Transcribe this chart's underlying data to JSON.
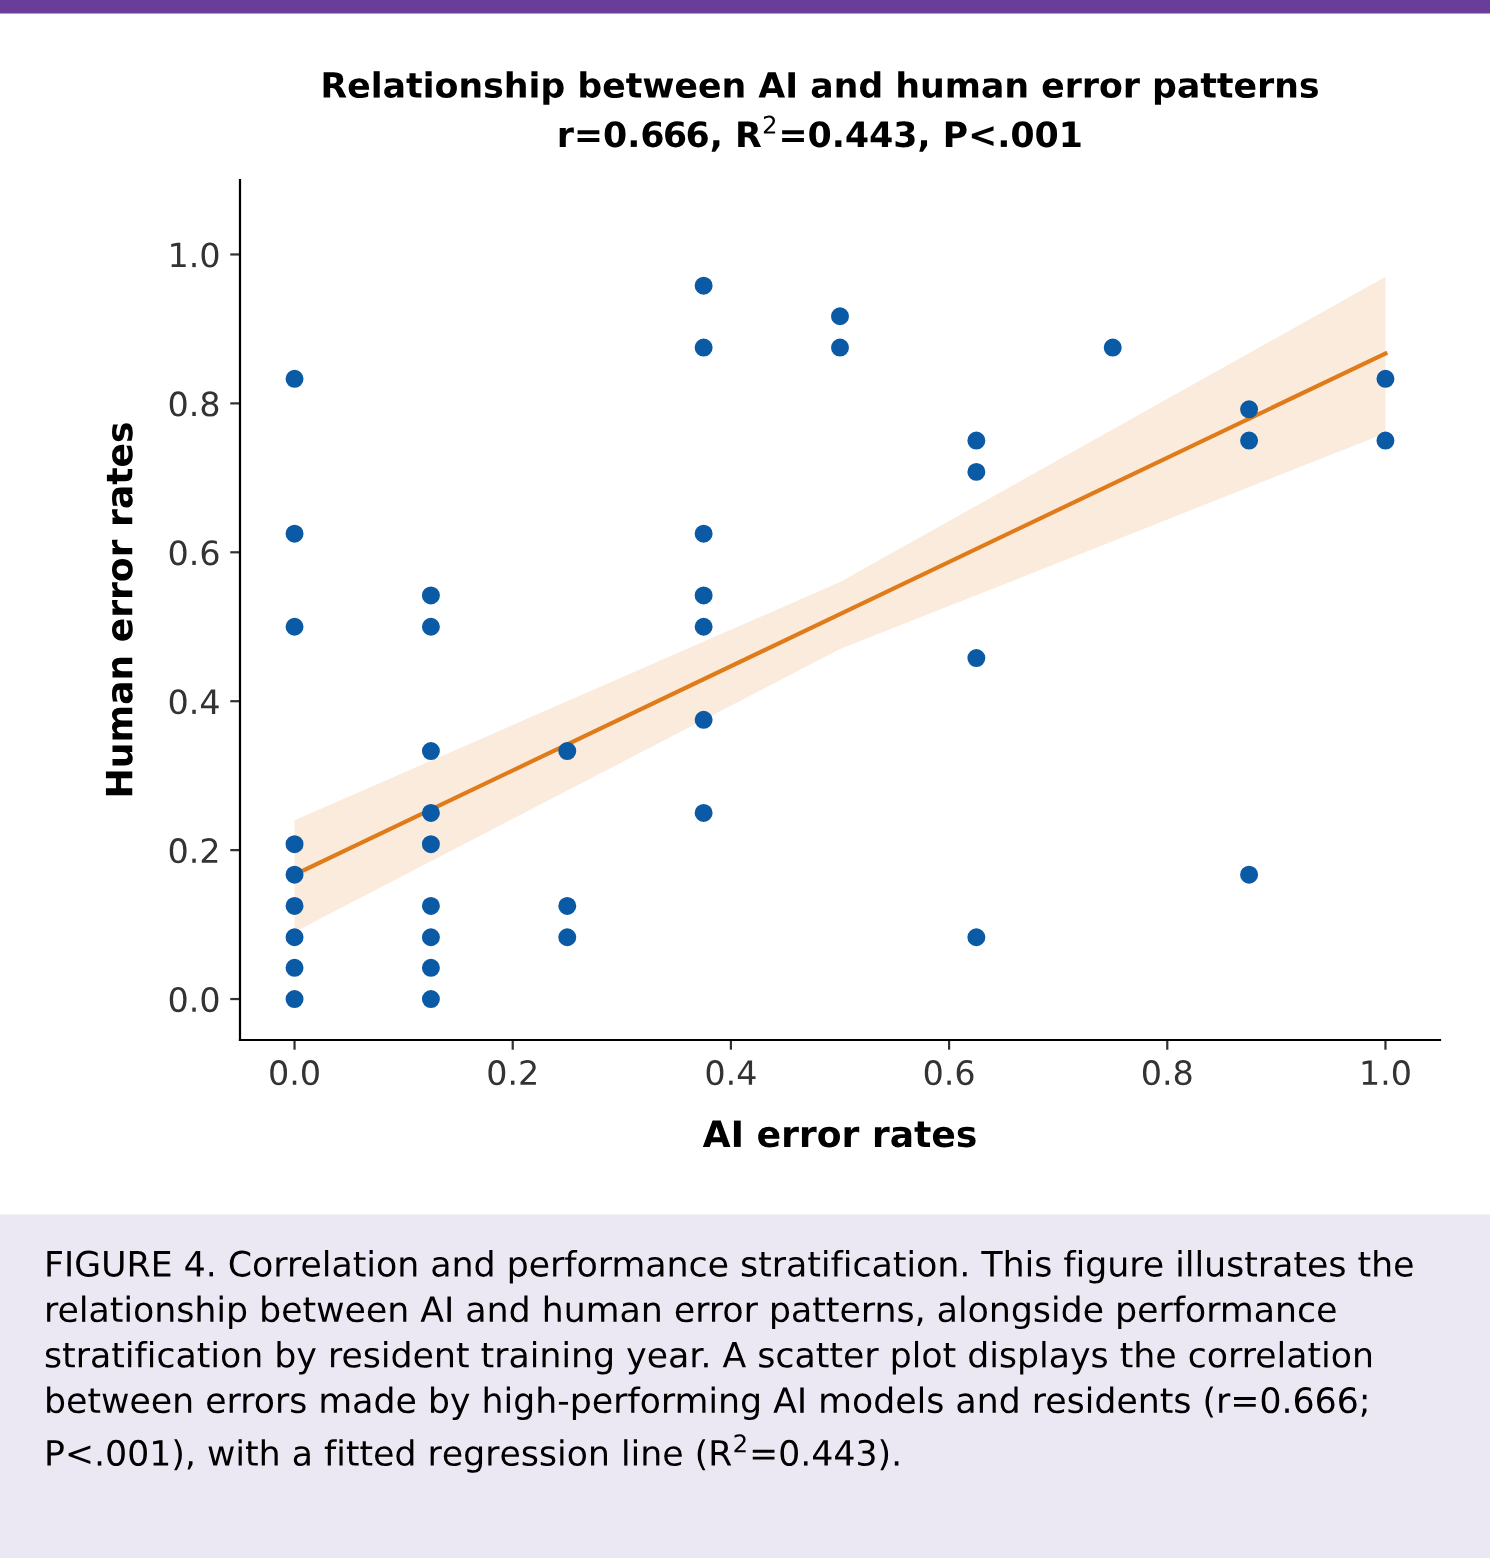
{
  "chart_data": {
    "type": "scatter",
    "title": "Relationship between AI and human error patterns",
    "subtitle": "r=0.666, R$^{2}$=0.443, P<.001",
    "xlabel": "AI error rates",
    "ylabel": "Human error rates",
    "series": [
      {
        "color": "#0b5aa5",
        "marker": "circle",
        "x": [
          0,
          0,
          0,
          0,
          0,
          0,
          0,
          0,
          0,
          0.125,
          0.125,
          0.125,
          0.125,
          0.125,
          0.125,
          0.125,
          0.125,
          0.125,
          0.25,
          0.25,
          0.25,
          0.375,
          0.375,
          0.375,
          0.375,
          0.375,
          0.375,
          0.375,
          0.5,
          0.5,
          0.625,
          0.625,
          0.625,
          0.625,
          0.75,
          0.875,
          0.875,
          0.875,
          1.0,
          1.0
        ],
        "values": [
          0.833,
          0.625,
          0.5,
          0.208,
          0.167,
          0.125,
          0.083,
          0.042,
          0.0,
          0.542,
          0.5,
          0.333,
          0.25,
          0.208,
          0.125,
          0.083,
          0.042,
          0.0,
          0.333,
          0.125,
          0.083,
          0.958,
          0.875,
          0.625,
          0.542,
          0.5,
          0.375,
          0.25,
          0.917,
          0.875,
          0.75,
          0.708,
          0.458,
          0.083,
          0.875,
          0.792,
          0.75,
          0.167,
          0.833,
          0.75
        ]
      },
      {
        "type": "line",
        "color": "#e07b1a",
        "x": [
          0,
          0.5,
          1.0
        ],
        "values": [
          0.167,
          0.517,
          0.867
        ],
        "lower": [
          0.09,
          0.47,
          0.76
        ],
        "upper": [
          0.24,
          0.56,
          0.97
        ]
      }
    ],
    "xlim": [
      -0.05,
      1.05
    ],
    "ylim": [
      -0.055,
      1.1
    ],
    "xticks": [
      {
        "value": 0,
        "label": "0.0"
      },
      0.2,
      0.4,
      0.6,
      0.8,
      {
        "value": 1,
        "label": "1.0"
      }
    ],
    "yticks": [
      {
        "value": 0,
        "label": "0.0"
      },
      0.2,
      0.4,
      0.6,
      0.8,
      {
        "value": 1,
        "label": "1.0"
      }
    ],
    "grid": false,
    "legend": false,
    "annotations": [
      "FIGURE 4. Correlation and performance stratification. This figure illustrates the relationship between AI and human error patterns, alongside performance stratification by resident training year. A scatter plot displays the correlation between errors made by high-performing AI models and residents (r=0.666; P<.001), with a fitted regression line (R$^{2}$=0.443)."
    ]
  }
}
